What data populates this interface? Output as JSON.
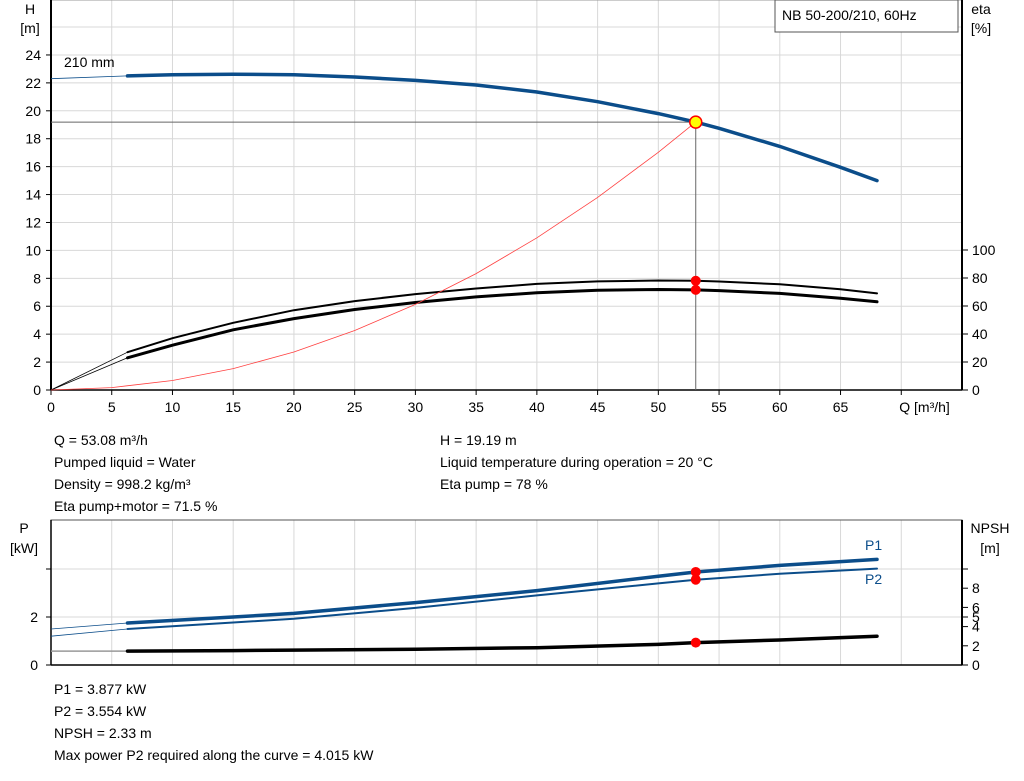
{
  "title_box": "NB 50-200/210, 60Hz",
  "colors": {
    "head_curve": "#0b4d8a",
    "system_curve": "#ff4040",
    "marker": "#ff0000",
    "duty_point_fill": "#ffff00",
    "grid": "#d8d8d8"
  },
  "chart_data": [
    {
      "type": "line",
      "ylabel": "H",
      "yunit": "[m]",
      "y2label": "eta",
      "y2unit": "[%]",
      "xlabel": "Q [m³/h]",
      "xlim": [
        0,
        75
      ],
      "ylim": [
        0,
        28
      ],
      "y2lim": [
        0,
        200
      ],
      "grid": true,
      "xticks": [
        0,
        5,
        10,
        15,
        20,
        25,
        30,
        35,
        40,
        45,
        50,
        55,
        60,
        65
      ],
      "yticks": [
        0,
        2,
        4,
        6,
        8,
        10,
        12,
        14,
        16,
        18,
        20,
        22,
        24
      ],
      "y2ticks": [
        0,
        20,
        40,
        60,
        80,
        100
      ],
      "curve_label": "210 mm",
      "series": [
        {
          "key": "head",
          "axis": "left",
          "x": [
            0,
            6.3,
            10,
            15,
            20,
            25,
            30,
            35,
            40,
            45,
            50,
            53.08,
            55,
            60,
            65,
            68
          ],
          "y": [
            22.3,
            22.5,
            22.58,
            22.62,
            22.58,
            22.42,
            22.18,
            21.85,
            21.35,
            20.65,
            19.8,
            19.19,
            18.75,
            17.45,
            15.95,
            15.0
          ]
        },
        {
          "key": "eta_pump",
          "axis": "right",
          "x": [
            0,
            6.3,
            10,
            15,
            20,
            25,
            30,
            35,
            40,
            45,
            50,
            53.08,
            55,
            60,
            65,
            68
          ],
          "y": [
            0,
            27,
            37,
            48,
            57,
            63.5,
            68.5,
            72.5,
            75.8,
            77.6,
            78.2,
            78,
            77.5,
            75.5,
            72,
            69
          ]
        },
        {
          "key": "eta_total",
          "axis": "right",
          "x": [
            0,
            6.3,
            10,
            15,
            20,
            25,
            30,
            35,
            40,
            45,
            50,
            53.08,
            55,
            60,
            65,
            68
          ],
          "y": [
            0,
            23,
            32,
            43,
            51,
            57.5,
            62.5,
            66.5,
            69.5,
            71.2,
            71.8,
            71.5,
            71,
            69,
            65.5,
            63
          ]
        },
        {
          "key": "system",
          "axis": "left",
          "x": [
            0,
            5,
            10,
            15,
            20,
            25,
            30,
            35,
            40,
            45,
            50,
            53.08
          ],
          "y": [
            0,
            0.17,
            0.68,
            1.53,
            2.72,
            4.26,
            6.13,
            8.34,
            10.9,
            13.8,
            17.03,
            19.19
          ]
        }
      ],
      "duty_point": {
        "x": 53.08,
        "y": 19.19
      },
      "markers_right": [
        78,
        71.5
      ]
    },
    {
      "type": "line",
      "ylabel": "P",
      "yunit": "[kW]",
      "y2label": "NPSH",
      "y2unit": "[m]",
      "xlim": [
        0,
        75
      ],
      "ylim": [
        0,
        6
      ],
      "y2lim": [
        0,
        15
      ],
      "grid": true,
      "yticks_labeled": [
        0,
        2
      ],
      "yticks": [
        0,
        2,
        4
      ],
      "y2ticks": [
        0,
        2,
        4,
        5,
        6,
        8,
        10
      ],
      "y2ticks_labeled": [
        0,
        2,
        4,
        5,
        6,
        8
      ],
      "series": [
        {
          "key": "P1",
          "name": "P1",
          "axis": "left",
          "x": [
            0,
            6.3,
            15,
            20,
            30,
            40,
            50,
            53.08,
            60,
            68
          ],
          "y": [
            1.5,
            1.75,
            2.0,
            2.15,
            2.6,
            3.1,
            3.7,
            3.877,
            4.15,
            4.4
          ]
        },
        {
          "key": "P2",
          "name": "P2",
          "axis": "left",
          "x": [
            0,
            6.3,
            15,
            20,
            30,
            40,
            50,
            53.08,
            60,
            68
          ],
          "y": [
            1.2,
            1.5,
            1.77,
            1.93,
            2.38,
            2.9,
            3.4,
            3.554,
            3.8,
            4.015
          ]
        },
        {
          "key": "NPSH",
          "axis": "right",
          "x": [
            0,
            6.3,
            15,
            20,
            30,
            40,
            50,
            53.08,
            60,
            68
          ],
          "y": [
            1.45,
            1.45,
            1.5,
            1.55,
            1.65,
            1.8,
            2.15,
            2.33,
            2.6,
            3.0
          ]
        }
      ],
      "duty_x": 53.08
    }
  ],
  "info_top": {
    "left": [
      "Q = 53.08 m³/h",
      "Pumped liquid = Water",
      "Density = 998.2 kg/m³",
      "Eta pump+motor = 71.5 %"
    ],
    "right": [
      "H = 19.19 m",
      "Liquid temperature during operation = 20 °C",
      "Eta pump = 78 %"
    ]
  },
  "info_bottom": [
    "P1 = 3.877 kW",
    "P2 = 3.554 kW",
    "NPSH = 2.33 m",
    "Max power P2 required along the curve = 4.015 kW"
  ]
}
